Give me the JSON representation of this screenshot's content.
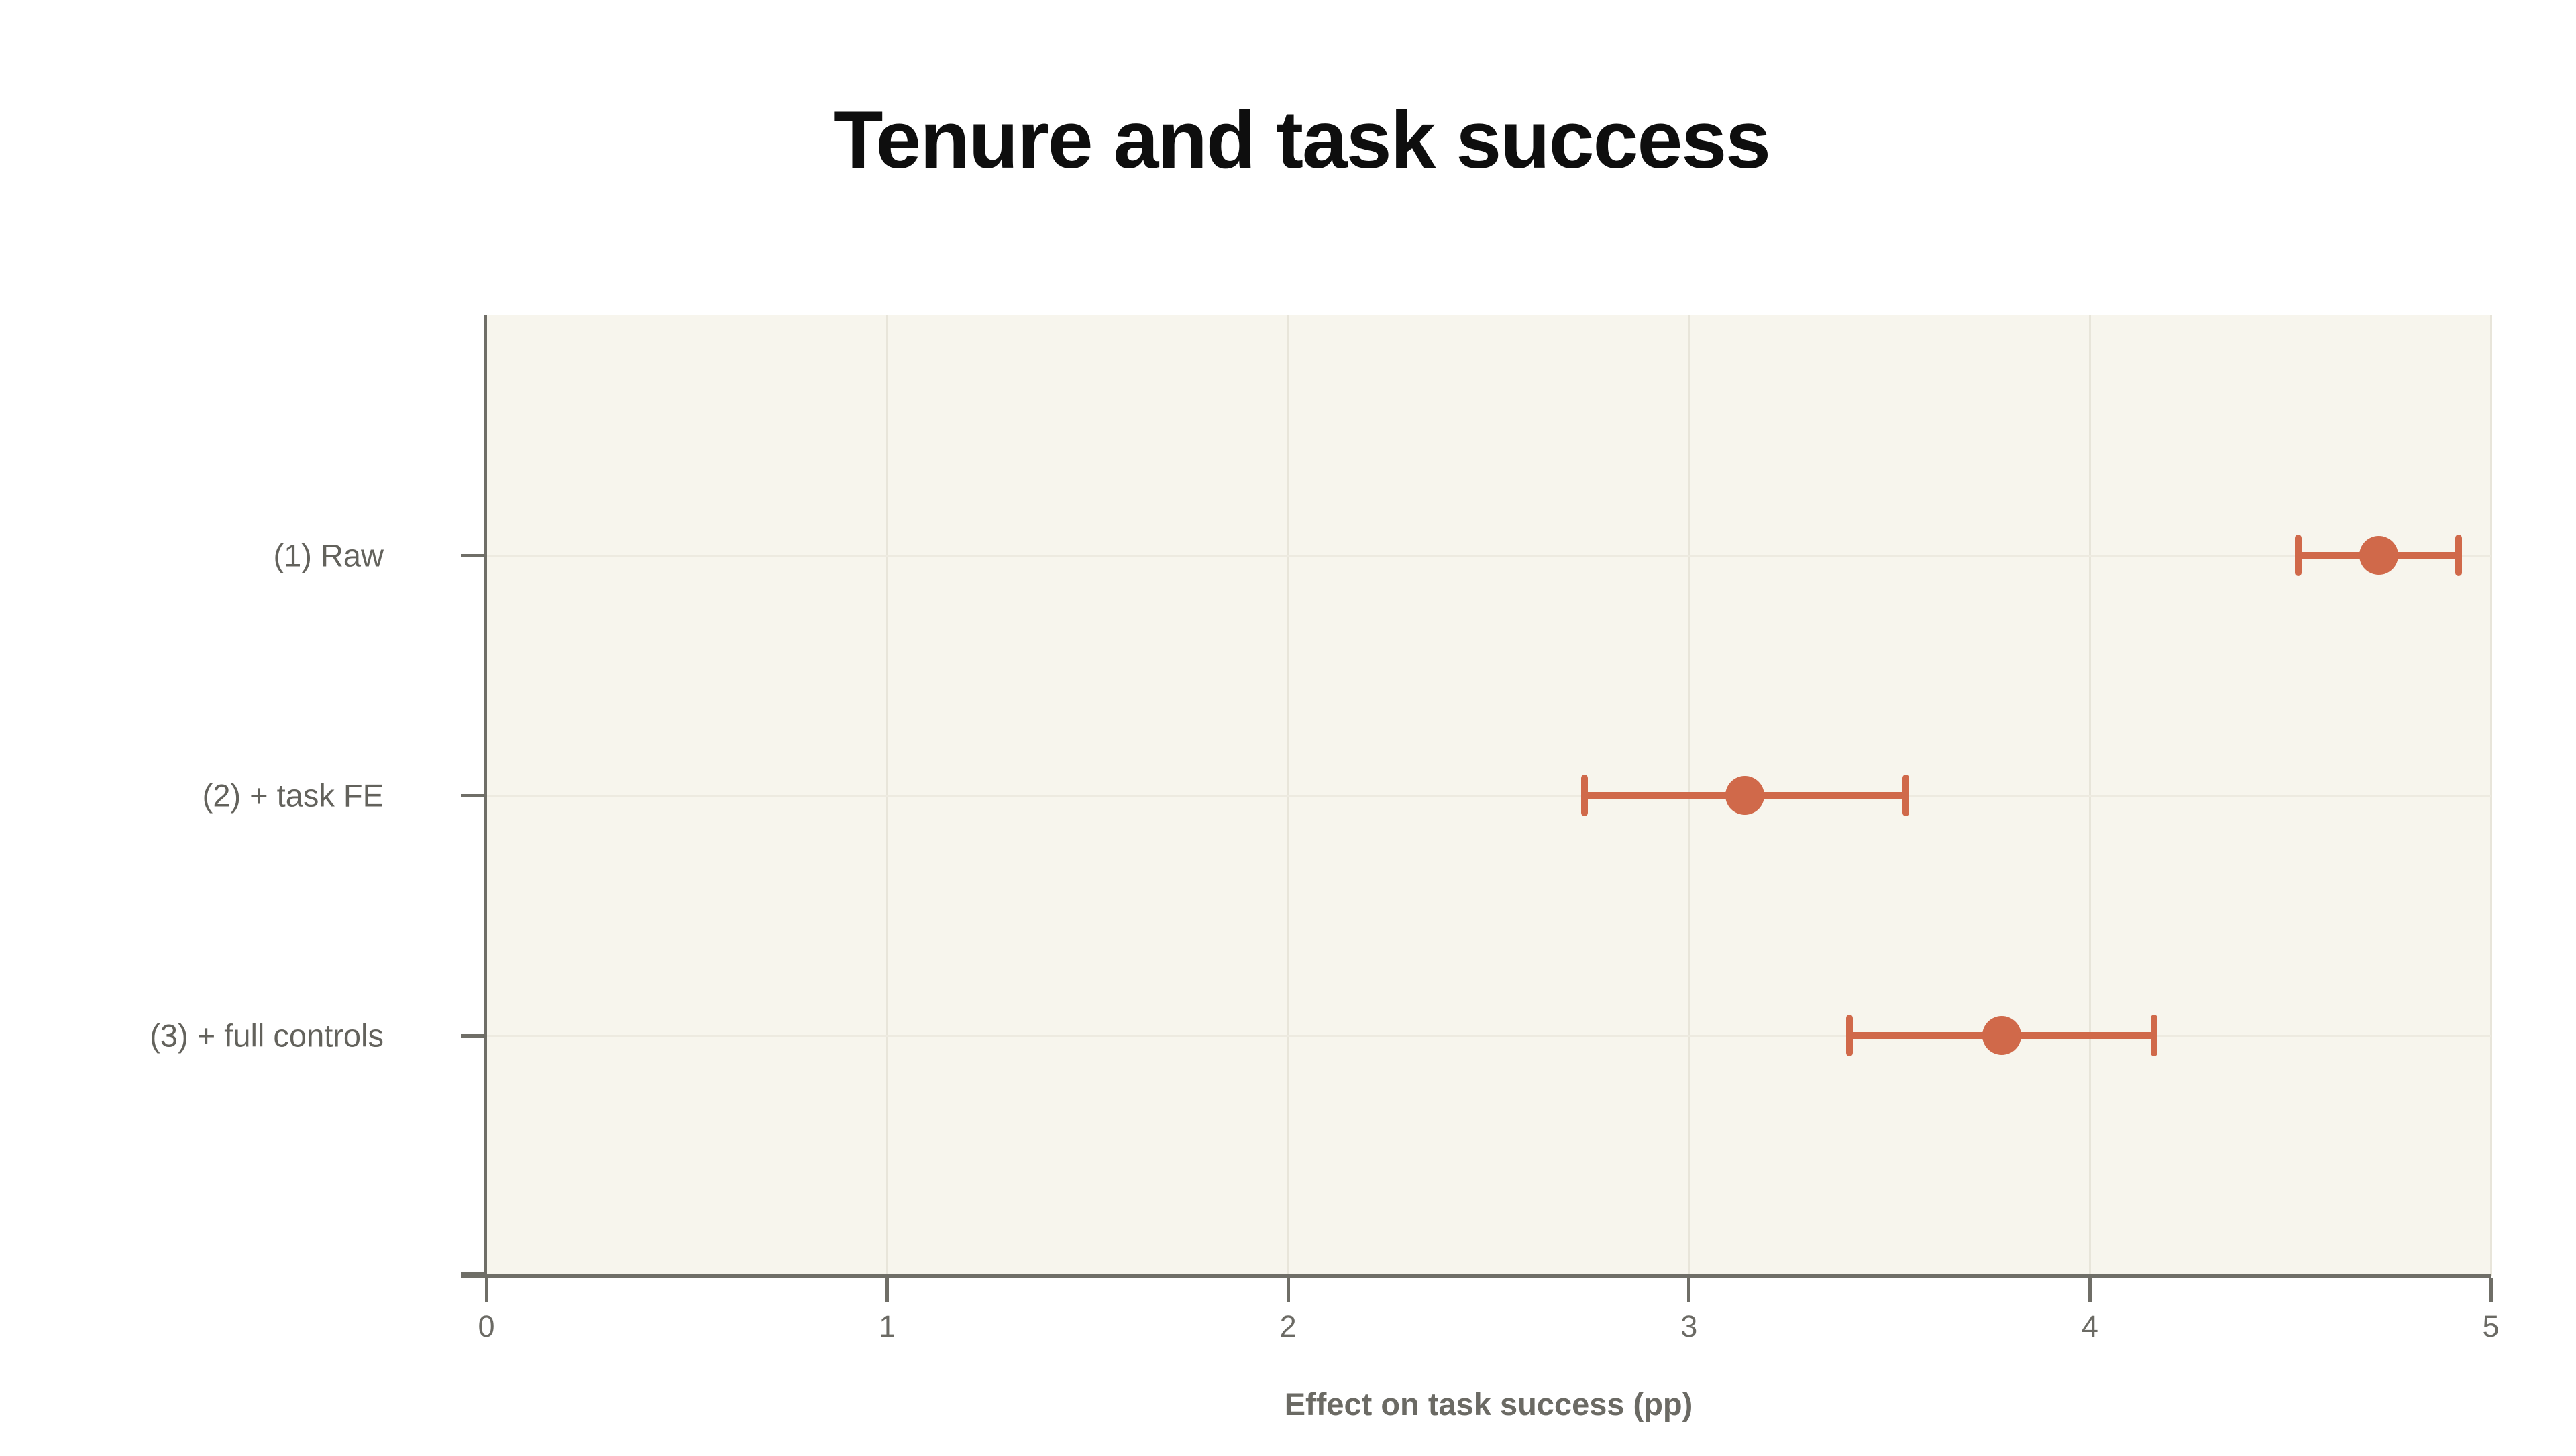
{
  "chart_data": {
    "type": "scatter",
    "subtype": "coefficient-plot-with-error-bars",
    "title": "Tenure and task success",
    "xlabel": "Effect on task success (pp)",
    "categories": [
      "(1) Raw",
      "(2) + task FE",
      "(3) + full controls"
    ],
    "points": [
      {
        "label": "(1) Raw",
        "estimate": 4.72,
        "ci_low": 4.52,
        "ci_high": 4.92
      },
      {
        "label": "(2) + task FE",
        "estimate": 3.14,
        "ci_low": 2.74,
        "ci_high": 3.54
      },
      {
        "label": "(3) + full controls",
        "estimate": 3.78,
        "ci_low": 3.4,
        "ci_high": 4.16
      }
    ],
    "xlim": [
      0,
      5
    ],
    "xticks": [
      0,
      1,
      2,
      3,
      4,
      5
    ],
    "grid": "on",
    "legend": "none",
    "colors": {
      "marker": "#d0694a",
      "plot_background": "#f7f5ed",
      "page_background": "#ffffff",
      "gridline_vertical": "#e8e5da",
      "gridline_horizontal": "#edeae0",
      "axis_spine": "#6f6e67",
      "tick_label": "#6b6a64",
      "row_label": "#63625c",
      "title": "#0e0e0e"
    }
  }
}
